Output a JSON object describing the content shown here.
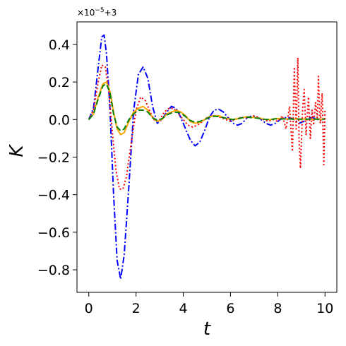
{
  "chart_data": {
    "type": "line",
    "title": "",
    "xlabel": "t",
    "ylabel": "K",
    "xlim": [
      -0.5,
      10.5
    ],
    "ylim": [
      -0.92,
      0.52
    ],
    "xticks": [
      0,
      2,
      4,
      6,
      8,
      10
    ],
    "yticks": [
      -0.8,
      -0.6,
      -0.4,
      -0.2,
      0.0,
      0.2,
      0.4
    ],
    "xtick_labels": [
      "0",
      "2",
      "4",
      "6",
      "8",
      "10"
    ],
    "ytick_labels": [
      "−0.8",
      "−0.6",
      "−0.4",
      "−0.2",
      "0.0",
      "0.2",
      "0.4"
    ],
    "offset": {
      "base": "×10",
      "exponent": "−5",
      "suffix": "+3"
    },
    "grid": false,
    "series": [
      {
        "color": "#0000ff",
        "linestyle": "dashdot",
        "points": [
          [
            0,
            0
          ],
          [
            0.2,
            0.06
          ],
          [
            0.4,
            0.28
          ],
          [
            0.55,
            0.44
          ],
          [
            0.65,
            0.45
          ],
          [
            0.75,
            0.35
          ],
          [
            0.9,
            0.05
          ],
          [
            1.05,
            -0.4
          ],
          [
            1.2,
            -0.75
          ],
          [
            1.35,
            -0.85
          ],
          [
            1.5,
            -0.72
          ],
          [
            1.7,
            -0.35
          ],
          [
            1.9,
            0.05
          ],
          [
            2.1,
            0.24
          ],
          [
            2.3,
            0.28
          ],
          [
            2.5,
            0.22
          ],
          [
            2.7,
            0.07
          ],
          [
            2.9,
            -0.02
          ],
          [
            3.1,
            0
          ],
          [
            3.3,
            0.04
          ],
          [
            3.5,
            0.07
          ],
          [
            3.7,
            0.06
          ],
          [
            3.9,
            0.01
          ],
          [
            4.1,
            -0.05
          ],
          [
            4.3,
            -0.11
          ],
          [
            4.5,
            -0.14
          ],
          [
            4.7,
            -0.12
          ],
          [
            4.9,
            -0.06
          ],
          [
            5.1,
            0.01
          ],
          [
            5.3,
            0.05
          ],
          [
            5.5,
            0.055
          ],
          [
            5.7,
            0.04
          ],
          [
            5.9,
            0.01
          ],
          [
            6.1,
            -0.02
          ],
          [
            6.3,
            -0.03
          ],
          [
            6.5,
            -0.02
          ],
          [
            6.7,
            0.01
          ],
          [
            6.9,
            0.02
          ],
          [
            7.1,
            0.015
          ],
          [
            7.3,
            0
          ],
          [
            7.5,
            -0.02
          ],
          [
            7.7,
            -0.03
          ],
          [
            7.9,
            -0.02
          ],
          [
            8.1,
            0
          ],
          [
            8.3,
            0.01
          ],
          [
            8.5,
            0.01
          ],
          [
            8.7,
            0
          ],
          [
            8.9,
            -0.02
          ],
          [
            9.1,
            -0.01
          ],
          [
            9.3,
            0.01
          ],
          [
            9.5,
            0.01
          ],
          [
            9.7,
            0
          ],
          [
            9.9,
            0
          ]
        ]
      },
      {
        "color": "#ff0000",
        "linestyle": "dotted",
        "points": [
          [
            0,
            0
          ],
          [
            0.2,
            0.05
          ],
          [
            0.4,
            0.2
          ],
          [
            0.55,
            0.29
          ],
          [
            0.7,
            0.28
          ],
          [
            0.85,
            0.15
          ],
          [
            1.0,
            -0.07
          ],
          [
            1.15,
            -0.27
          ],
          [
            1.3,
            -0.37
          ],
          [
            1.45,
            -0.37
          ],
          [
            1.6,
            -0.3
          ],
          [
            1.8,
            -0.12
          ],
          [
            2.0,
            0.05
          ],
          [
            2.2,
            0.12
          ],
          [
            2.4,
            0.1
          ],
          [
            2.6,
            0.04
          ],
          [
            2.8,
            -0.01
          ],
          [
            3.0,
            0
          ],
          [
            3.2,
            0.04
          ],
          [
            3.4,
            0.06
          ],
          [
            3.6,
            0.06
          ],
          [
            3.8,
            0.03
          ],
          [
            4.0,
            0
          ],
          [
            4.2,
            -0.03
          ],
          [
            4.4,
            -0.04
          ],
          [
            4.6,
            -0.03
          ],
          [
            4.8,
            -0.01
          ],
          [
            5.0,
            0.01
          ],
          [
            5.2,
            0.02
          ],
          [
            5.4,
            0.02
          ],
          [
            5.6,
            0.01
          ],
          [
            5.8,
            0
          ],
          [
            6.0,
            -0.01
          ],
          [
            6.2,
            0
          ],
          [
            6.4,
            0.01
          ],
          [
            6.6,
            0.01
          ],
          [
            6.8,
            0.01
          ],
          [
            7.0,
            0.02
          ],
          [
            7.2,
            0.01
          ],
          [
            7.4,
            0
          ],
          [
            7.6,
            -0.01
          ],
          [
            7.8,
            0
          ],
          [
            8.0,
            -0.01
          ],
          [
            8.2,
            0.02
          ],
          [
            8.35,
            -0.05
          ],
          [
            8.5,
            0.07
          ],
          [
            8.62,
            -0.17
          ],
          [
            8.7,
            0.28
          ],
          [
            8.78,
            -0.05
          ],
          [
            8.85,
            0.33
          ],
          [
            8.9,
            -0.1
          ],
          [
            8.96,
            -0.26
          ],
          [
            9.05,
            0.05
          ],
          [
            9.12,
            0.16
          ],
          [
            9.2,
            -0.08
          ],
          [
            9.3,
            0.12
          ],
          [
            9.38,
            -0.1
          ],
          [
            9.45,
            0.05
          ],
          [
            9.52,
            -0.03
          ],
          [
            9.6,
            0.09
          ],
          [
            9.68,
            0
          ],
          [
            9.72,
            0.23
          ],
          [
            9.8,
            -0.02
          ],
          [
            9.88,
            0.14
          ],
          [
            9.95,
            -0.24
          ],
          [
            10.0,
            0.05
          ]
        ]
      },
      {
        "color": "#ffa500",
        "linestyle": "solid",
        "points": [
          [
            0,
            0
          ],
          [
            0.2,
            0.03
          ],
          [
            0.4,
            0.12
          ],
          [
            0.6,
            0.19
          ],
          [
            0.75,
            0.2
          ],
          [
            0.9,
            0.15
          ],
          [
            1.05,
            0.04
          ],
          [
            1.2,
            -0.05
          ],
          [
            1.35,
            -0.08
          ],
          [
            1.5,
            -0.07
          ],
          [
            1.7,
            -0.01
          ],
          [
            1.9,
            0.04
          ],
          [
            2.1,
            0.06
          ],
          [
            2.3,
            0.07
          ],
          [
            2.5,
            0.05
          ],
          [
            2.7,
            0.01
          ],
          [
            2.9,
            -0.01
          ],
          [
            3.1,
            0
          ],
          [
            3.3,
            0.03
          ],
          [
            3.5,
            0.04
          ],
          [
            3.7,
            0.05
          ],
          [
            3.9,
            0.04
          ],
          [
            4.1,
            0.02
          ],
          [
            4.3,
            -0.01
          ],
          [
            4.5,
            -0.02
          ],
          [
            4.7,
            -0.015
          ],
          [
            4.9,
            0
          ],
          [
            5.1,
            0.015
          ],
          [
            5.3,
            0.02
          ],
          [
            5.5,
            0.02
          ],
          [
            5.7,
            0.01
          ],
          [
            5.9,
            0.005
          ],
          [
            6.1,
            0
          ],
          [
            6.3,
            0.005
          ],
          [
            6.5,
            0.01
          ],
          [
            6.7,
            0.015
          ],
          [
            6.9,
            0.012
          ],
          [
            7.1,
            0.01
          ],
          [
            7.3,
            0.005
          ],
          [
            7.5,
            0
          ],
          [
            7.7,
            0
          ],
          [
            7.9,
            0.005
          ],
          [
            8.1,
            0.005
          ],
          [
            8.5,
            0.003
          ],
          [
            9.0,
            0.002
          ],
          [
            9.5,
            0.002
          ],
          [
            10,
            0.002
          ]
        ]
      },
      {
        "color": "#008000",
        "linestyle": "dashed",
        "points": [
          [
            0,
            0
          ],
          [
            0.2,
            0.03
          ],
          [
            0.4,
            0.11
          ],
          [
            0.6,
            0.18
          ],
          [
            0.75,
            0.19
          ],
          [
            0.9,
            0.14
          ],
          [
            1.05,
            0.03
          ],
          [
            1.2,
            -0.04
          ],
          [
            1.35,
            -0.06
          ],
          [
            1.5,
            -0.05
          ],
          [
            1.7,
            0
          ],
          [
            1.9,
            0.03
          ],
          [
            2.1,
            0.05
          ],
          [
            2.3,
            0.05
          ],
          [
            2.5,
            0.04
          ],
          [
            2.7,
            0.01
          ],
          [
            2.9,
            -0.005
          ],
          [
            3.1,
            0.005
          ],
          [
            3.3,
            0.025
          ],
          [
            3.5,
            0.035
          ],
          [
            3.7,
            0.04
          ],
          [
            3.9,
            0.035
          ],
          [
            4.1,
            0.015
          ],
          [
            4.3,
            -0.005
          ],
          [
            4.5,
            -0.015
          ],
          [
            4.7,
            -0.01
          ],
          [
            4.9,
            0
          ],
          [
            5.1,
            0.012
          ],
          [
            5.3,
            0.018
          ],
          [
            5.5,
            0.016
          ],
          [
            5.7,
            0.01
          ],
          [
            5.9,
            0.004
          ],
          [
            6.1,
            0
          ],
          [
            6.3,
            0.004
          ],
          [
            6.5,
            0.01
          ],
          [
            6.7,
            0.013
          ],
          [
            6.9,
            0.01
          ],
          [
            7.1,
            0.008
          ],
          [
            7.3,
            0.004
          ],
          [
            7.5,
            0
          ],
          [
            7.7,
            0
          ],
          [
            7.9,
            0.004
          ],
          [
            8.1,
            0.004
          ],
          [
            8.5,
            0.003
          ],
          [
            9.0,
            0.002
          ],
          [
            9.5,
            0.002
          ],
          [
            10,
            0.002
          ]
        ]
      }
    ]
  }
}
